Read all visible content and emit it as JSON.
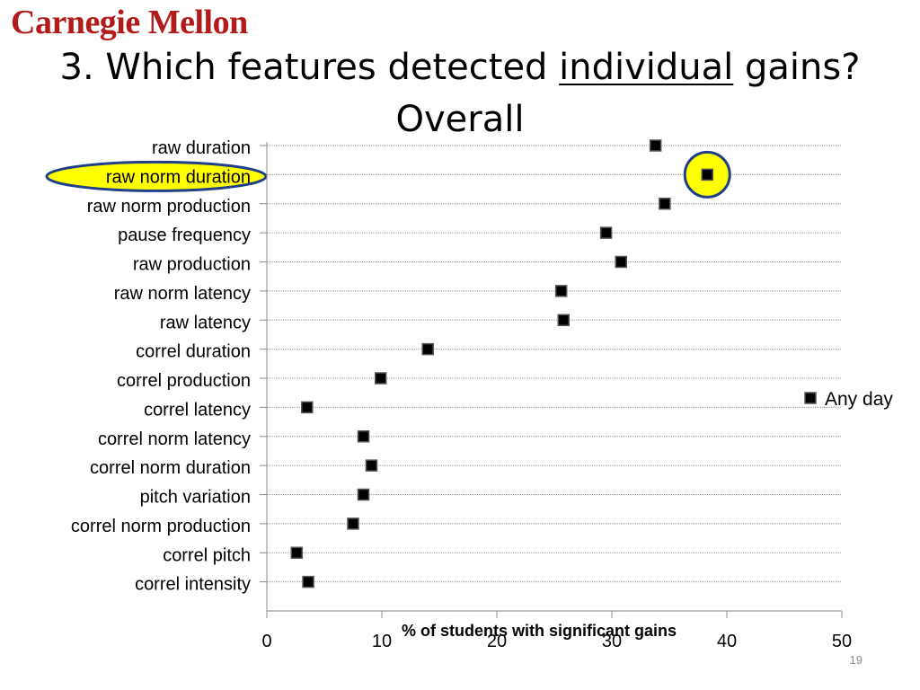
{
  "header": {
    "logo_text": "Carnegie Mellon",
    "title_prefix": "3. Which features detected ",
    "title_emphasis": "individual",
    "title_suffix": " gains?",
    "title_line2": "Overall",
    "page_number": "19"
  },
  "colors": {
    "logo": "#b31b1b",
    "marker_fill": "#000000",
    "marker_stroke": "#555555",
    "highlight_fill": "#ffff00",
    "highlight_stroke": "#1f3f8a",
    "gridline": "#9a9a9a"
  },
  "chart_data": {
    "type": "scatter",
    "categories": [
      "raw duration",
      "raw  norm duration",
      "raw  norm production",
      "pause frequency",
      "raw production",
      "raw norm latency",
      "raw latency",
      "correl duration",
      "correl production",
      "correl latency",
      "correl norm latency",
      "correl norm duration",
      "pitch variation",
      "correl norm production",
      "correl pitch",
      "correl intensity"
    ],
    "series": [
      {
        "name": "Any day",
        "values": [
          33.8,
          38.3,
          34.6,
          29.5,
          30.8,
          25.6,
          25.8,
          14.0,
          9.9,
          3.5,
          8.4,
          9.1,
          8.4,
          7.5,
          2.6,
          3.6
        ]
      }
    ],
    "highlighted_category": "raw  norm duration",
    "xlabel": "% of students with significant gains",
    "ylabel": "",
    "xlim": [
      0,
      50
    ],
    "xticks": [
      "0",
      "10",
      "20",
      "30",
      "40",
      "50"
    ],
    "grid": true,
    "legend_position": "right"
  }
}
